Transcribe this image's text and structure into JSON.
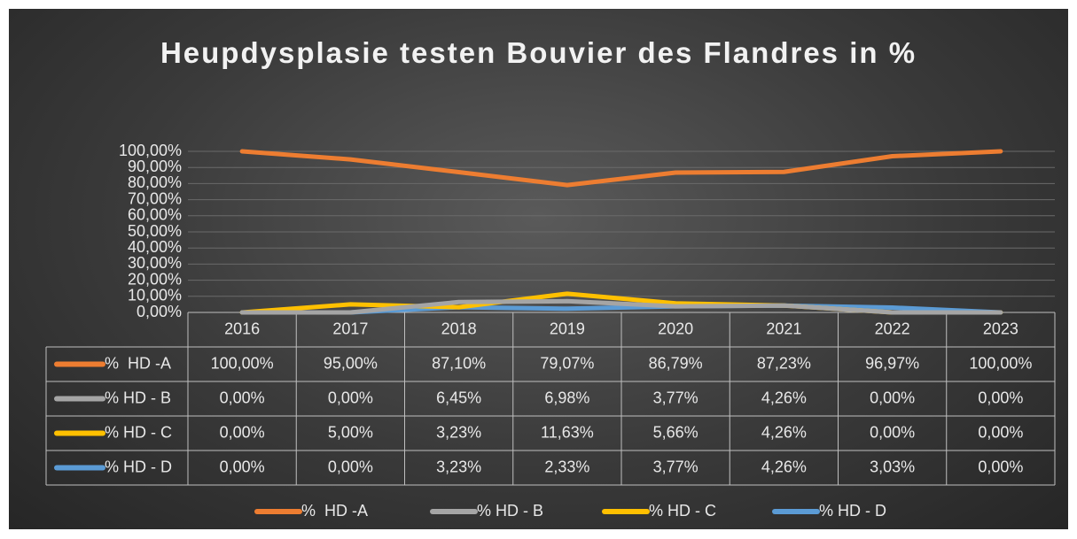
{
  "chart_data": {
    "type": "line",
    "title": "Heupdysplasie testen Bouvier des Flandres in %",
    "categories": [
      "2016",
      "2017",
      "2018",
      "2019",
      "2020",
      "2021",
      "2022",
      "2023"
    ],
    "series": [
      {
        "name": "%  HD -A",
        "color": "#ed7d31",
        "values": [
          100,
          95,
          87.1,
          79.07,
          86.79,
          87.23,
          96.97,
          100
        ],
        "value_labels": [
          "100,00%",
          "95,00%",
          "87,10%",
          "79,07%",
          "86,79%",
          "87,23%",
          "96,97%",
          "100,00%"
        ]
      },
      {
        "name": "% HD - B",
        "color": "#a5a5a5",
        "values": [
          0,
          0,
          6.45,
          6.98,
          3.77,
          4.26,
          0,
          0
        ],
        "value_labels": [
          "0,00%",
          "0,00%",
          "6,45%",
          "6,98%",
          "3,77%",
          "4,26%",
          "0,00%",
          "0,00%"
        ]
      },
      {
        "name": "% HD - C",
        "color": "#ffc000",
        "values": [
          0,
          5,
          3.23,
          11.63,
          5.66,
          4.26,
          0,
          0
        ],
        "value_labels": [
          "0,00%",
          "5,00%",
          "3,23%",
          "11,63%",
          "5,66%",
          "4,26%",
          "0,00%",
          "0,00%"
        ]
      },
      {
        "name": "% HD - D",
        "color": "#5b9bd5",
        "values": [
          0,
          0,
          3.23,
          2.33,
          3.77,
          4.26,
          3.03,
          0
        ],
        "value_labels": [
          "0,00%",
          "0,00%",
          "3,23%",
          "2,33%",
          "3,77%",
          "4,26%",
          "3,03%",
          "0,00%"
        ]
      }
    ],
    "ylim": [
      0,
      100
    ],
    "yticks": [
      {
        "value": 0,
        "label": "0,00%"
      },
      {
        "value": 10,
        "label": "10,00%"
      },
      {
        "value": 20,
        "label": "20,00%"
      },
      {
        "value": 30,
        "label": "30,00%"
      },
      {
        "value": 40,
        "label": "40,00%"
      },
      {
        "value": 50,
        "label": "50,00%"
      },
      {
        "value": 60,
        "label": "60,00%"
      },
      {
        "value": 70,
        "label": "70,00%"
      },
      {
        "value": 80,
        "label": "80,00%"
      },
      {
        "value": 90,
        "label": "90,00%"
      },
      {
        "value": 100,
        "label": "100,00%"
      }
    ],
    "grid": true,
    "legend": "bottom"
  }
}
